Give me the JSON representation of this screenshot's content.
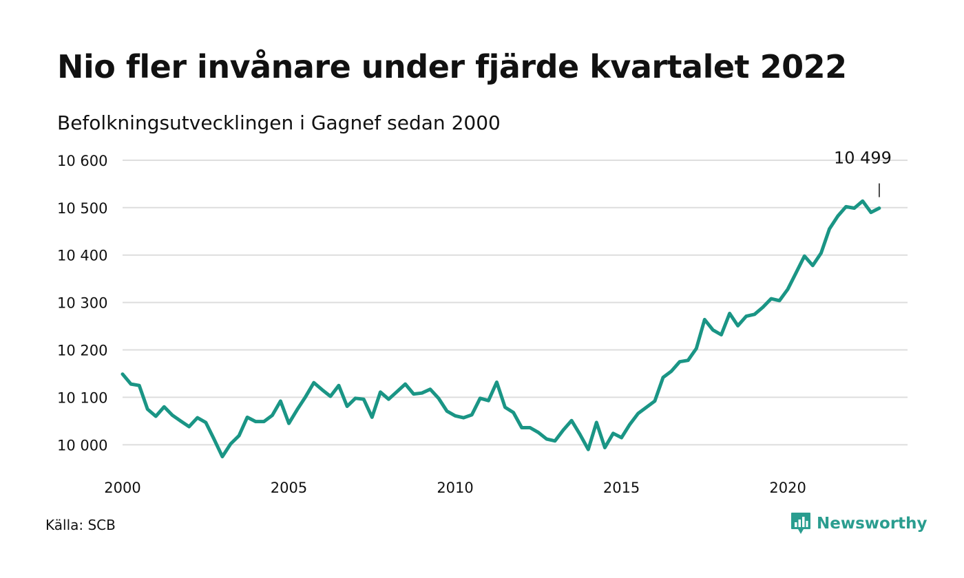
{
  "title": "Nio fler invånare under fjärde kvartalet 2022",
  "subtitle": "Befolkningsutvecklingen i Gagnef sedan 2000",
  "source": "Källa: SCB",
  "brand": {
    "name": "Newsworthy",
    "icon": "chat-bar-chart-icon",
    "color": "#2a9d8f"
  },
  "chart_data": {
    "type": "line",
    "title": "Nio fler invånare under fjärde kvartalet 2022",
    "subtitle": "Befolkningsutvecklingen i Gagnef sedan 2000",
    "xlabel": "",
    "ylabel": "",
    "xlim": [
      2000,
      2023.6
    ],
    "ylim": [
      9970,
      10610
    ],
    "xticks": [
      2000,
      2005,
      2010,
      2015,
      2020
    ],
    "xtick_labels": [
      "2000",
      "2005",
      "2010",
      "2015",
      "2020"
    ],
    "yticks": [
      10000,
      10100,
      10200,
      10300,
      10400,
      10500,
      10600
    ],
    "ytick_labels": [
      "10 000",
      "10 100",
      "10 200",
      "10 300",
      "10 400",
      "10 500",
      "10 600"
    ],
    "grid": true,
    "line_color": "#1a9585",
    "annotation": {
      "x": 2022.75,
      "y": 10499,
      "label": "10 499"
    },
    "series": [
      {
        "name": "",
        "x": [
          2000.0,
          2000.25,
          2000.5,
          2000.75,
          2001.0,
          2001.25,
          2001.5,
          2001.75,
          2002.0,
          2002.25,
          2002.5,
          2002.75,
          2003.0,
          2003.25,
          2003.5,
          2003.75,
          2004.0,
          2004.25,
          2004.5,
          2004.75,
          2005.0,
          2005.25,
          2005.5,
          2005.75,
          2006.0,
          2006.25,
          2006.5,
          2006.75,
          2007.0,
          2007.25,
          2007.5,
          2007.75,
          2008.0,
          2008.25,
          2008.5,
          2008.75,
          2009.0,
          2009.25,
          2009.5,
          2009.75,
          2010.0,
          2010.25,
          2010.5,
          2010.75,
          2011.0,
          2011.25,
          2011.5,
          2011.75,
          2012.0,
          2012.25,
          2012.5,
          2012.75,
          2013.0,
          2013.25,
          2013.5,
          2013.75,
          2014.0,
          2014.25,
          2014.5,
          2014.75,
          2015.0,
          2015.25,
          2015.5,
          2015.75,
          2016.0,
          2016.25,
          2016.5,
          2016.75,
          2017.0,
          2017.25,
          2017.5,
          2017.75,
          2018.0,
          2018.25,
          2018.5,
          2018.75,
          2019.0,
          2019.25,
          2019.5,
          2019.75,
          2020.0,
          2020.25,
          2020.5,
          2020.75,
          2021.0,
          2021.25,
          2021.5,
          2021.75,
          2022.0,
          2022.25,
          2022.5,
          2022.75
        ],
        "values": [
          10149,
          10128,
          10125,
          10075,
          10060,
          10080,
          10062,
          10050,
          10038,
          10057,
          10047,
          10012,
          9975,
          10002,
          10019,
          10058,
          10049,
          10049,
          10062,
          10092,
          10045,
          10074,
          10101,
          10131,
          10116,
          10102,
          10125,
          10081,
          10098,
          10096,
          10058,
          10111,
          10096,
          10112,
          10128,
          10107,
          10109,
          10117,
          10098,
          10071,
          10061,
          10057,
          10063,
          10098,
          10093,
          10132,
          10079,
          10068,
          10036,
          10036,
          10026,
          10012,
          10008,
          10031,
          10051,
          10022,
          9990,
          10047,
          9994,
          10024,
          10015,
          10043,
          10066,
          10079,
          10092,
          10142,
          10155,
          10175,
          10178,
          10203,
          10264,
          10242,
          10232,
          10277,
          10251,
          10271,
          10275,
          10290,
          10308,
          10304,
          10328,
          10363,
          10398,
          10378,
          10404,
          10455,
          10482,
          10502,
          10499,
          10514,
          10490,
          10499
        ]
      }
    ]
  }
}
